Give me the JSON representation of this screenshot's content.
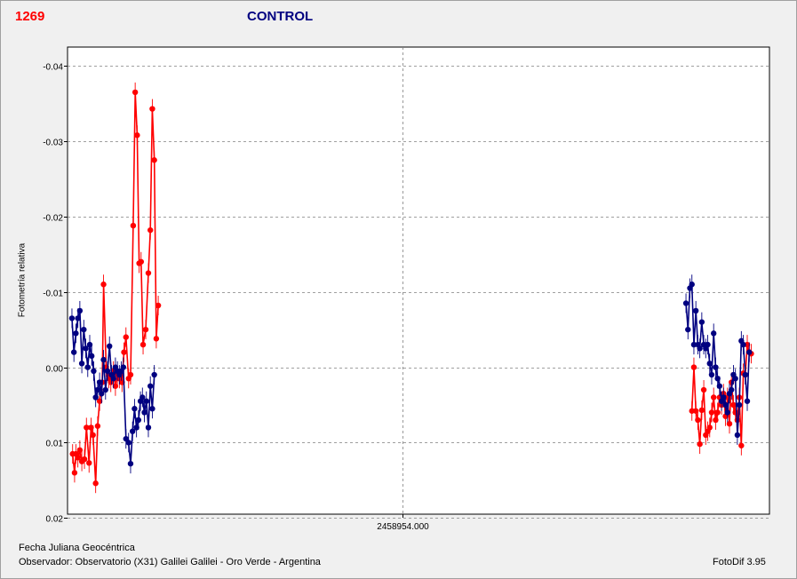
{
  "header": {
    "object_id": "1269",
    "mode": "CONTROL"
  },
  "footer": {
    "xlabel": "Fecha Juliana Geocéntrica",
    "observer": "Observador: Observatorio (X31) Galilei Galilei - Oro Verde - Argentina",
    "software": "FotoDif 3.95"
  },
  "colors": {
    "target": "#ff0000",
    "control": "#000080",
    "grid": "#808080"
  },
  "chart_data": {
    "type": "scatter",
    "title": "CONTROL",
    "xlabel": "Fecha Juliana Geocéntrica",
    "ylabel": "Fotometría relativa",
    "x_tick_labels": [
      "2458954.000"
    ],
    "y_tick_labels": [
      "-0.04",
      "-0.03",
      "-0.02",
      "-0.01",
      "0.00",
      "0.01",
      "0.02"
    ],
    "ylim": [
      -0.0425,
      0.0195
    ],
    "y_inverted": true,
    "grid": true,
    "series": [
      {
        "color": "#ff0000",
        "x": [
          0.2,
          0.5,
          0.8,
          1.2,
          1.6,
          2.0,
          2.4,
          2.8,
          3.2,
          3.6,
          4.0,
          4.4,
          4.8,
          5.2,
          5.6,
          6.0,
          6.4,
          6.8,
          7.2,
          7.6,
          8.0,
          8.4,
          8.8,
          9.2,
          9.6,
          10.0,
          10.4,
          10.8,
          11.2,
          11.6,
          12.0,
          12.4,
          12.8,
          13.2,
          13.6,
          14.0,
          14.4,
          14.8,
          15.2,
          15.6,
          16.0,
          16.4,
          16.8,
          17.2,
          17.6,
          18.0,
          18.4,
          18.8,
          19.2,
          19.6,
          20.0,
          20.4,
          20.8,
          21.2,
          21.6,
          22.0,
          22.4,
          22.8,
          23.2,
          23.6,
          24.0,
          24.4,
          24.8,
          25.2,
          25.6,
          26.0,
          26.4,
          26.8,
          27.2,
          27.6,
          28.0,
          28.4,
          28.8,
          29.2,
          29.6,
          30.0,
          30.4,
          30.8,
          31.2,
          31.6,
          32.0,
          32.4,
          32.8,
          33.2,
          33.6,
          34.0,
          34.4,
          34.8,
          35.2,
          35.6,
          36.0,
          36.4,
          36.8,
          37.2,
          37.6,
          38.0,
          38.4,
          38.8,
          39.2,
          39.6,
          40.0,
          40.4,
          40.8,
          41.2,
          41.6,
          42.0,
          42.4,
          42.8,
          43.2,
          43.6,
          44.0,
          44.4,
          44.8,
          45.2,
          45.6,
          46.0,
          46.4,
          46.8,
          47.2,
          47.6,
          48.0,
          48.4,
          48.8,
          49.2,
          49.6,
          50.0,
          50.4,
          50.8,
          51.2,
          51.6,
          52.0,
          52.4,
          52.8,
          53.2,
          53.6,
          54.0,
          54.4,
          54.8,
          55.2,
          55.6,
          56.0,
          56.4,
          56.8,
          57.2,
          57.6,
          58.0,
          58.4,
          58.8,
          59.2,
          59.6,
          60.0,
          60.4,
          60.8,
          61.2,
          61.6,
          62.0,
          62.4,
          62.8,
          63.2,
          63.6,
          64.0,
          64.4,
          64.8,
          65.2,
          65.6,
          66.0,
          66.4,
          66.8,
          67.2,
          67.6,
          68.0,
          68.4,
          68.8,
          69.2,
          69.6,
          70.0,
          70.4,
          70.8,
          71.2,
          71.6,
          72.0,
          72.4,
          72.8,
          73.2,
          73.6,
          74.0,
          74.4,
          74.8,
          75.2,
          75.6,
          76.0,
          76.4,
          76.8,
          77.2,
          77.6,
          78.0,
          78.4,
          78.8,
          79.2,
          79.6,
          80.0,
          80.4,
          80.8,
          81.2,
          81.6,
          82.0,
          82.4,
          82.8,
          83.2,
          83.6,
          84.0,
          84.4,
          84.8,
          85.2,
          85.6,
          86.0,
          86.4,
          86.8,
          87.2,
          87.6,
          88.0,
          88.4,
          88.8,
          89.2,
          89.6,
          90.0,
          90.4,
          90.8,
          91.2,
          91.6,
          92.0,
          92.4,
          92.8,
          93.2,
          93.6,
          94.0,
          94.4,
          94.8,
          95.2,
          95.6,
          96.0,
          96.4,
          96.8,
          97.2,
          97.6,
          98.0,
          98.4,
          98.8,
          99.2,
          99.6,
          100.0,
          100.4,
          100.8,
          101.2,
          101.6,
          102.0,
          102.4,
          102.8,
          103.2,
          103.6,
          104.0,
          104.4,
          104.8,
          105.2,
          105.6,
          106.0
        ],
        "points": [
          [
            0.5,
            0.0115
          ],
          [
            0.8,
            0.014
          ],
          [
            1.0,
            0.0115
          ],
          [
            1.3,
            0.012
          ],
          [
            1.6,
            0.011
          ],
          [
            1.9,
            0.0125
          ],
          [
            2.3,
            0.0122
          ],
          [
            2.6,
            0.008
          ],
          [
            3.0,
            0.0127
          ],
          [
            3.3,
            0.008
          ],
          [
            3.6,
            0.009
          ],
          [
            4.0,
            0.0154
          ],
          [
            4.3,
            0.0078
          ],
          [
            4.6,
            0.0045
          ],
          [
            5.0,
            0.002
          ],
          [
            5.2,
            -0.011
          ],
          [
            5.6,
            0.0
          ],
          [
            6.0,
            0.0015
          ],
          [
            6.3,
            0.002
          ],
          [
            6.7,
            0.0005
          ],
          [
            7.0,
            0.0025
          ],
          [
            7.3,
            0.001
          ],
          [
            7.6,
            0.0015
          ],
          [
            8.0,
            0.002
          ],
          [
            8.3,
            -0.002
          ],
          [
            8.6,
            -0.004
          ],
          [
            9.0,
            0.0015
          ],
          [
            9.3,
            0.001
          ],
          [
            9.7,
            -0.0188
          ],
          [
            10.0,
            -0.0365
          ],
          [
            10.3,
            -0.0308
          ],
          [
            10.6,
            -0.0138
          ],
          [
            10.9,
            -0.014
          ],
          [
            11.2,
            -0.003
          ],
          [
            11.6,
            -0.005
          ],
          [
            12.0,
            -0.0125
          ],
          [
            12.3,
            -0.0182
          ],
          [
            12.6,
            -0.0343
          ],
          [
            12.9,
            -0.0275
          ],
          [
            13.2,
            -0.0038
          ],
          [
            13.5,
            -0.0082
          ],
          [
            94.5,
            0.0058
          ],
          [
            94.8,
            0.0
          ],
          [
            95.1,
            0.0058
          ],
          [
            95.4,
            0.007
          ],
          [
            95.7,
            0.0102
          ],
          [
            96.0,
            0.0057
          ],
          [
            96.3,
            0.003
          ],
          [
            96.6,
            0.009
          ],
          [
            96.9,
            0.0085
          ],
          [
            97.2,
            0.008
          ],
          [
            97.5,
            0.006
          ],
          [
            97.8,
            0.004
          ],
          [
            98.1,
            0.007
          ],
          [
            98.4,
            0.006
          ],
          [
            98.7,
            0.004
          ],
          [
            99.0,
            0.005
          ],
          [
            99.3,
            0.0035
          ],
          [
            99.6,
            0.0065
          ],
          [
            99.9,
            0.004
          ],
          [
            100.2,
            0.0075
          ],
          [
            100.5,
            0.002
          ],
          [
            100.8,
            0.005
          ],
          [
            101.1,
            0.006
          ],
          [
            101.4,
            0.007
          ],
          [
            101.7,
            0.004
          ],
          [
            102.0,
            0.0104
          ],
          [
            102.3,
            0.0008
          ],
          [
            102.6,
            0.001
          ],
          [
            102.9,
            -0.003
          ],
          [
            103.2,
            -0.002
          ],
          [
            103.5,
            -0.0018
          ]
        ]
      },
      {
        "color": "#000080",
        "points": [
          [
            0.4,
            -0.0065
          ],
          [
            0.7,
            -0.002
          ],
          [
            1.0,
            -0.0045
          ],
          [
            1.3,
            -0.0065
          ],
          [
            1.6,
            -0.0075
          ],
          [
            1.9,
            -0.0005
          ],
          [
            2.2,
            -0.005
          ],
          [
            2.5,
            -0.0025
          ],
          [
            2.8,
            0.0
          ],
          [
            3.1,
            -0.003
          ],
          [
            3.4,
            -0.0015
          ],
          [
            3.7,
            0.0005
          ],
          [
            4.0,
            0.004
          ],
          [
            4.3,
            0.003
          ],
          [
            4.6,
            0.002
          ],
          [
            4.9,
            0.0035
          ],
          [
            5.2,
            -0.001
          ],
          [
            5.5,
            0.003
          ],
          [
            5.8,
            0.0005
          ],
          [
            6.1,
            -0.0028
          ],
          [
            6.4,
            0.001
          ],
          [
            6.7,
            0.0015
          ],
          [
            7.0,
            0.0
          ],
          [
            7.3,
            0.0005
          ],
          [
            7.6,
            0.001
          ],
          [
            7.9,
            0.0005
          ],
          [
            8.2,
            0.0
          ],
          [
            8.6,
            0.0095
          ],
          [
            9.0,
            0.01
          ],
          [
            9.3,
            0.0128
          ],
          [
            9.6,
            0.0085
          ],
          [
            9.9,
            0.0055
          ],
          [
            10.2,
            0.008
          ],
          [
            10.5,
            0.007
          ],
          [
            10.8,
            0.0045
          ],
          [
            11.1,
            0.004
          ],
          [
            11.4,
            0.006
          ],
          [
            11.7,
            0.0045
          ],
          [
            12.0,
            0.008
          ],
          [
            12.3,
            0.0025
          ],
          [
            12.6,
            0.0055
          ],
          [
            12.9,
            0.001
          ],
          [
            93.6,
            -0.0085
          ],
          [
            93.9,
            -0.005
          ],
          [
            94.2,
            -0.0105
          ],
          [
            94.5,
            -0.011
          ],
          [
            94.8,
            -0.003
          ],
          [
            95.1,
            -0.0075
          ],
          [
            95.4,
            -0.003
          ],
          [
            95.7,
            -0.0025
          ],
          [
            96.0,
            -0.006
          ],
          [
            96.3,
            -0.003
          ],
          [
            96.6,
            -0.0025
          ],
          [
            96.9,
            -0.003
          ],
          [
            97.2,
            -0.0005
          ],
          [
            97.5,
            0.001
          ],
          [
            97.8,
            -0.0045
          ],
          [
            98.1,
            0.0
          ],
          [
            98.4,
            0.0015
          ],
          [
            98.7,
            0.0025
          ],
          [
            99.0,
            0.0045
          ],
          [
            99.3,
            0.004
          ],
          [
            99.6,
            0.005
          ],
          [
            99.9,
            0.006
          ],
          [
            100.2,
            0.0035
          ],
          [
            100.5,
            0.003
          ],
          [
            100.8,
            0.001
          ],
          [
            101.1,
            0.0015
          ],
          [
            101.4,
            0.009
          ],
          [
            101.7,
            0.005
          ],
          [
            102.0,
            -0.0035
          ],
          [
            102.3,
            -0.003
          ],
          [
            102.6,
            0.001
          ],
          [
            102.9,
            0.0045
          ],
          [
            103.2,
            -0.002
          ]
        ]
      }
    ]
  }
}
